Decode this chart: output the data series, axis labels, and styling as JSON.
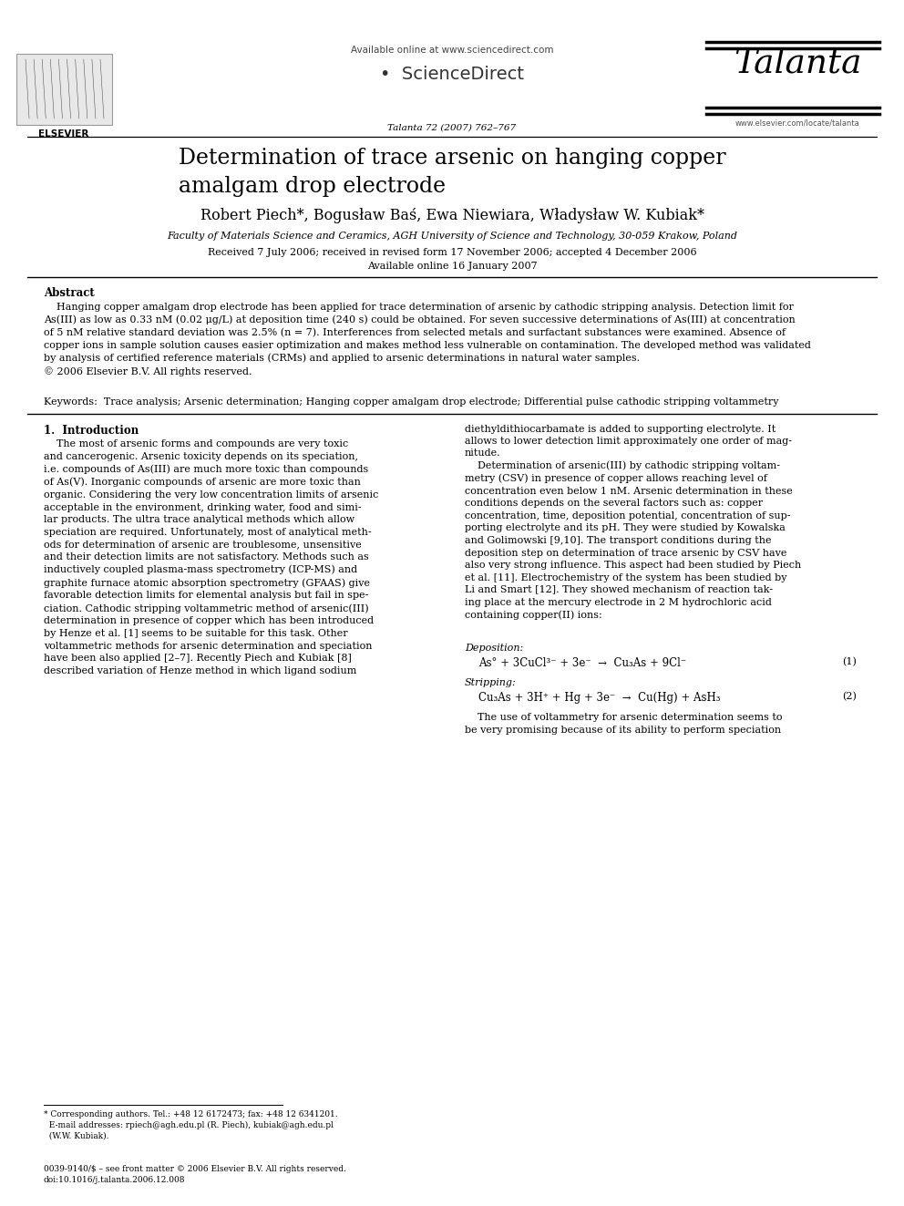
{
  "bg_color": "#ffffff",
  "title": "Determination of trace arsenic on hanging copper\namalgam drop electrode",
  "authors": "Robert Piech*, Bogusław Baś, Ewa Niewiara, Władysław W. Kubiak*",
  "affiliation": "Faculty of Materials Science and Ceramics, AGH University of Science and Technology, 30-059 Krakow, Poland",
  "dates": "Received 7 July 2006; received in revised form 17 November 2006; accepted 4 December 2006",
  "online": "Available online 16 January 2007",
  "journal_line": "Talanta 72 (2007) 762–767",
  "journal_name": "Talanta",
  "available_online": "Available online at www.sciencedirect.com",
  "sciencedirect": "ScienceDirect",
  "elsevier": "ELSEVIER",
  "website": "www.elsevier.com/locate/talanta",
  "abstract_title": "Abstract",
  "abstract_text": "    Hanging copper amalgam drop electrode has been applied for trace determination of arsenic by cathodic stripping analysis. Detection limit for\nAs(III) as low as 0.33 nM (0.02 μg/L) at deposition time (240 s) could be obtained. For seven successive determinations of As(III) at concentration\nof 5 nM relative standard deviation was 2.5% (n = 7). Interferences from selected metals and surfactant substances were examined. Absence of\ncopper ions in sample solution causes easier optimization and makes method less vulnerable on contamination. The developed method was validated\nby analysis of certified reference materials (CRMs) and applied to arsenic determinations in natural water samples.\n© 2006 Elsevier B.V. All rights reserved.",
  "keywords_text": "Keywords:  Trace analysis; Arsenic determination; Hanging copper amalgam drop electrode; Differential pulse cathodic stripping voltammetry",
  "section1_title": "1.  Introduction",
  "left_col_line1": "diethyldithiocarbamate is added to supporting electrolyte. It",
  "left_col_line2": "allows to lower detection limit approximately one order of mag-",
  "left_col_line3": "nitude.",
  "intro_left": "    The most of arsenic forms and compounds are very toxic\nand cancerogenic. Arsenic toxicity depends on its speciation,\ni.e. compounds of As(III) are much more toxic than compounds\nof As(V). Inorganic compounds of arsenic are more toxic than\norganic. Considering the very low concentration limits of arsenic\nacceptable in the environment, drinking water, food and simi-\nlar products. The ultra trace analytical methods which allow\nspeciation are required. Unfortunately, most of analytical meth-\nods for determination of arsenic are troublesome, unsensitive\nand their detection limits are not satisfactory. Methods such as\ninductively coupled plasma-mass spectrometry (ICP-MS) and\ngraphite furnace atomic absorption spectrometry (GFAAS) give\nfavorable detection limits for elemental analysis but fail in spe-\nciation. Cathodic stripping voltammetric method of arsenic(III)\ndetermination in presence of copper which has been introduced\nby Henze et al. [1] seems to be suitable for this task. Other\nvoltammetric methods for arsenic determination and speciation\nhave been also applied [2–7]. Recently Piech and Kubiak [8]\ndescribed variation of Henze method in which ligand sodium",
  "intro_right": "    Determination of arsenic(III) by cathodic stripping voltam-\nmetry (CSV) in presence of copper allows reaching level of\nconcentration even below 1 nM. Arsenic determination in these\nconditions depends on the several factors such as: copper\nconcentration, time, deposition potential, concentration of sup-\nporting electrolyte and its pH. They were studied by Kowalska\nand Golimowski [9,10]. The transport conditions during the\ndeposition step on determination of trace arsenic by CSV have\nalso very strong influence. This aspect had been studied by Piech\net al. [11]. Electrochemistry of the system has been studied by\nLi and Smart [12]. They showed mechanism of reaction tak-\ning place at the mercury electrode in 2 M hydrochloric acid\ncontaining copper(II) ions:",
  "deposition_label": "Deposition:",
  "deposition_eq": "As° + 3CuCl³⁻ + 3e⁻  →  Cu₃As + 9Cl⁻",
  "deposition_num": "(1)",
  "stripping_label": "Stripping:",
  "stripping_eq": "Cu₃As + 3H⁺ + Hg + 3e⁻  →  Cu(Hg) + AsH₃",
  "stripping_num": "(2)",
  "last_right": "    The use of voltammetry for arsenic determination seems to\nbe very promising because of its ability to perform speciation",
  "footer_line": "* Corresponding authors. Tel.: +48 12 6172473; fax: +48 12 6341201.\n  E-mail addresses: rpiech@agh.edu.pl (R. Piech), kubiak@agh.edu.pl\n  (W.W. Kubiak).",
  "footer_issn": "0039-9140/$ – see front matter © 2006 Elsevier B.V. All rights reserved.\ndoi:10.1016/j.talanta.2006.12.008"
}
